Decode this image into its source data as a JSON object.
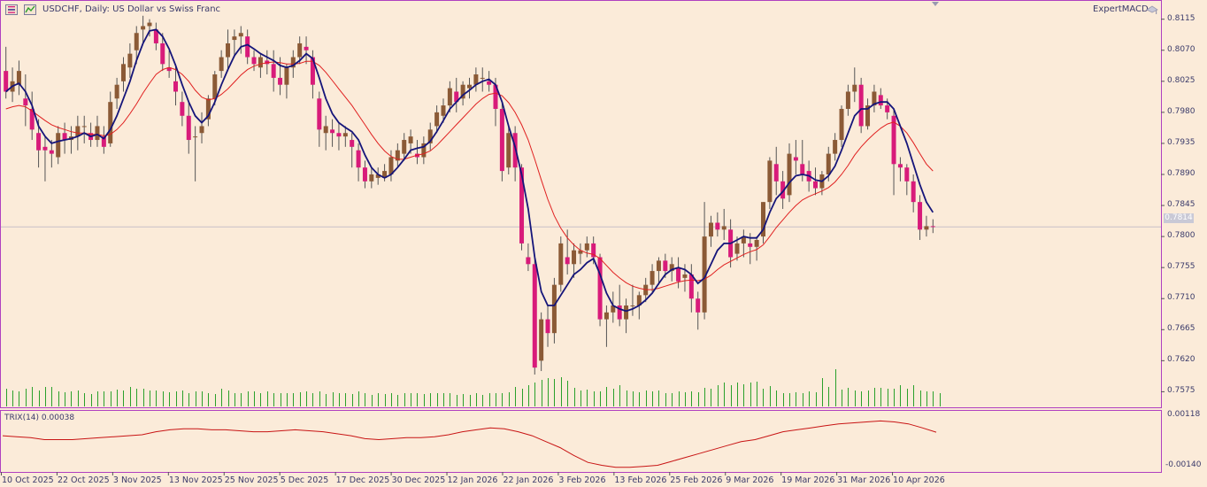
{
  "header": {
    "title": "USDCHF, Daily:  US Dollar vs Swiss Franc",
    "expert": "ExpertMACD"
  },
  "price_axis": {
    "ticks": [
      "0.8115",
      "0.8070",
      "0.8025",
      "0.7980",
      "0.7935",
      "0.7890",
      "0.7845",
      "0.7800",
      "0.7755",
      "0.7710",
      "0.7665",
      "0.7620",
      "0.7575"
    ],
    "current_price": "0.7814"
  },
  "indicator": {
    "label": "TRIX(14) 0.00038",
    "ticks": [
      "0.00118",
      "-0.00140"
    ]
  },
  "time_axis": {
    "labels": [
      "10 Oct 2025",
      "22 Oct 2025",
      "3 Nov 2025",
      "13 Nov 2025",
      "25 Nov 2025",
      "5 Dec 2025",
      "17 Dec 2025",
      "30 Dec 2025",
      "12 Jan 2026",
      "22 Jan 2026",
      "3 Feb 2026",
      "13 Feb 2026",
      "25 Feb 2026",
      "9 Mar 2026",
      "19 Mar 2026",
      "31 Mar 2026",
      "10 Apr 2026"
    ]
  },
  "colors": {
    "background": "#fbebd9",
    "bull_candle": "#8b5a36",
    "bear_candle": "#d81b7a",
    "fast_ma": "#15157a",
    "slow_ma": "#e02020",
    "volume": "#2aa02a",
    "trix": "#c81414",
    "frame": "#b040c0"
  },
  "chart_data": {
    "type": "candlestick",
    "title": "USDCHF, Daily:  US Dollar vs Swiss Franc",
    "ohlc": [
      [
        0.804,
        0.8075,
        0.8,
        0.801
      ],
      [
        0.801,
        0.8045,
        0.7995,
        0.8025
      ],
      [
        0.802,
        0.8055,
        0.8005,
        0.804
      ],
      [
        0.8,
        0.8035,
        0.796,
        0.799
      ],
      [
        0.7985,
        0.801,
        0.794,
        0.7955
      ],
      [
        0.795,
        0.797,
        0.79,
        0.7925
      ],
      [
        0.793,
        0.7945,
        0.788,
        0.7925
      ],
      [
        0.7925,
        0.794,
        0.79,
        0.792
      ],
      [
        0.7915,
        0.796,
        0.7905,
        0.795
      ],
      [
        0.795,
        0.7965,
        0.792,
        0.794
      ],
      [
        0.794,
        0.796,
        0.792,
        0.7945
      ],
      [
        0.7945,
        0.7975,
        0.7925,
        0.796
      ],
      [
        0.796,
        0.7975,
        0.7935,
        0.796
      ],
      [
        0.795,
        0.7965,
        0.793,
        0.794
      ],
      [
        0.794,
        0.7975,
        0.793,
        0.796
      ],
      [
        0.7945,
        0.796,
        0.792,
        0.793
      ],
      [
        0.7935,
        0.801,
        0.793,
        0.7995
      ],
      [
        0.8,
        0.803,
        0.7985,
        0.802
      ],
      [
        0.8025,
        0.806,
        0.801,
        0.805
      ],
      [
        0.8045,
        0.808,
        0.803,
        0.8065
      ],
      [
        0.807,
        0.8105,
        0.805,
        0.8095
      ],
      [
        0.81,
        0.812,
        0.808,
        0.8105
      ],
      [
        0.8105,
        0.8115,
        0.809,
        0.811
      ],
      [
        0.81,
        0.811,
        0.807,
        0.808
      ],
      [
        0.808,
        0.8095,
        0.804,
        0.805
      ],
      [
        0.8045,
        0.807,
        0.803,
        0.804
      ],
      [
        0.8025,
        0.805,
        0.799,
        0.801
      ],
      [
        0.7995,
        0.801,
        0.796,
        0.7975
      ],
      [
        0.7975,
        0.7995,
        0.792,
        0.794
      ],
      [
        0.7945,
        0.796,
        0.788,
        0.7945
      ],
      [
        0.795,
        0.798,
        0.7935,
        0.796
      ],
      [
        0.797,
        0.8005,
        0.796,
        0.8
      ],
      [
        0.8,
        0.804,
        0.799,
        0.8035
      ],
      [
        0.804,
        0.807,
        0.803,
        0.806
      ],
      [
        0.806,
        0.81,
        0.804,
        0.808
      ],
      [
        0.8085,
        0.81,
        0.806,
        0.809
      ],
      [
        0.809,
        0.8105,
        0.8065,
        0.8095
      ],
      [
        0.809,
        0.81,
        0.805,
        0.806
      ],
      [
        0.806,
        0.807,
        0.804,
        0.805
      ],
      [
        0.8045,
        0.8065,
        0.803,
        0.806
      ],
      [
        0.8055,
        0.807,
        0.8035,
        0.805
      ],
      [
        0.805,
        0.807,
        0.801,
        0.803
      ],
      [
        0.803,
        0.806,
        0.8005,
        0.802
      ],
      [
        0.802,
        0.805,
        0.8,
        0.8045
      ],
      [
        0.8045,
        0.807,
        0.803,
        0.806
      ],
      [
        0.806,
        0.809,
        0.805,
        0.808
      ],
      [
        0.8075,
        0.809,
        0.805,
        0.807
      ],
      [
        0.806,
        0.807,
        0.8,
        0.802
      ],
      [
        0.8,
        0.801,
        0.793,
        0.7955
      ],
      [
        0.795,
        0.7975,
        0.7925,
        0.796
      ],
      [
        0.7955,
        0.797,
        0.793,
        0.795
      ],
      [
        0.795,
        0.7965,
        0.7925,
        0.7945
      ],
      [
        0.7945,
        0.796,
        0.793,
        0.795
      ],
      [
        0.794,
        0.795,
        0.79,
        0.793
      ],
      [
        0.7925,
        0.7935,
        0.788,
        0.79
      ],
      [
        0.79,
        0.791,
        0.787,
        0.788
      ],
      [
        0.788,
        0.79,
        0.787,
        0.789
      ],
      [
        0.7885,
        0.79,
        0.7875,
        0.789
      ],
      [
        0.7885,
        0.7905,
        0.788,
        0.7895
      ],
      [
        0.789,
        0.7925,
        0.788,
        0.7915
      ],
      [
        0.791,
        0.7935,
        0.79,
        0.7925
      ],
      [
        0.792,
        0.795,
        0.791,
        0.794
      ],
      [
        0.7935,
        0.7955,
        0.792,
        0.7945
      ],
      [
        0.792,
        0.794,
        0.7905,
        0.7915
      ],
      [
        0.7915,
        0.7945,
        0.7905,
        0.7935
      ],
      [
        0.7935,
        0.7965,
        0.7925,
        0.7955
      ],
      [
        0.796,
        0.799,
        0.795,
        0.798
      ],
      [
        0.7975,
        0.8,
        0.7965,
        0.799
      ],
      [
        0.799,
        0.8025,
        0.798,
        0.8015
      ],
      [
        0.801,
        0.803,
        0.798,
        0.7995
      ],
      [
        0.8,
        0.8025,
        0.799,
        0.802
      ],
      [
        0.8015,
        0.803,
        0.8,
        0.802
      ],
      [
        0.802,
        0.8045,
        0.801,
        0.8035
      ],
      [
        0.803,
        0.8045,
        0.801,
        0.803
      ],
      [
        0.8025,
        0.804,
        0.801,
        0.802
      ],
      [
        0.802,
        0.803,
        0.796,
        0.7985
      ],
      [
        0.7985,
        0.7995,
        0.788,
        0.7895
      ],
      [
        0.79,
        0.796,
        0.789,
        0.795
      ],
      [
        0.795,
        0.796,
        0.788,
        0.79
      ],
      [
        0.79,
        0.7905,
        0.778,
        0.779
      ],
      [
        0.777,
        0.779,
        0.775,
        0.776
      ],
      [
        0.776,
        0.777,
        0.76,
        0.761
      ],
      [
        0.762,
        0.769,
        0.7605,
        0.768
      ],
      [
        0.768,
        0.77,
        0.764,
        0.766
      ],
      [
        0.766,
        0.774,
        0.7645,
        0.773
      ],
      [
        0.773,
        0.78,
        0.772,
        0.779
      ],
      [
        0.777,
        0.781,
        0.7745,
        0.776
      ],
      [
        0.776,
        0.779,
        0.774,
        0.778
      ],
      [
        0.7775,
        0.779,
        0.776,
        0.778
      ],
      [
        0.778,
        0.78,
        0.777,
        0.779
      ],
      [
        0.779,
        0.78,
        0.776,
        0.777
      ],
      [
        0.777,
        0.7775,
        0.767,
        0.768
      ],
      [
        0.768,
        0.77,
        0.764,
        0.769
      ],
      [
        0.769,
        0.772,
        0.7675,
        0.77
      ],
      [
        0.77,
        0.773,
        0.767,
        0.768
      ],
      [
        0.768,
        0.771,
        0.766,
        0.77
      ],
      [
        0.77,
        0.773,
        0.7685,
        0.77
      ],
      [
        0.77,
        0.772,
        0.768,
        0.7715
      ],
      [
        0.7715,
        0.774,
        0.7705,
        0.773
      ],
      [
        0.773,
        0.776,
        0.772,
        0.775
      ],
      [
        0.775,
        0.777,
        0.773,
        0.7765
      ],
      [
        0.7765,
        0.7775,
        0.774,
        0.775
      ],
      [
        0.775,
        0.777,
        0.7735,
        0.776
      ],
      [
        0.7755,
        0.777,
        0.7725,
        0.7735
      ],
      [
        0.774,
        0.776,
        0.772,
        0.7745
      ],
      [
        0.7745,
        0.776,
        0.769,
        0.771
      ],
      [
        0.771,
        0.772,
        0.7665,
        0.769
      ],
      [
        0.769,
        0.785,
        0.768,
        0.78
      ],
      [
        0.78,
        0.783,
        0.7785,
        0.782
      ],
      [
        0.782,
        0.7835,
        0.78,
        0.781
      ],
      [
        0.781,
        0.784,
        0.7795,
        0.7815
      ],
      [
        0.781,
        0.7825,
        0.7755,
        0.777
      ],
      [
        0.7775,
        0.78,
        0.7765,
        0.779
      ],
      [
        0.779,
        0.781,
        0.777,
        0.78
      ],
      [
        0.779,
        0.7805,
        0.776,
        0.7785
      ],
      [
        0.7785,
        0.78,
        0.7765,
        0.7795
      ],
      [
        0.78,
        0.785,
        0.779,
        0.785
      ],
      [
        0.785,
        0.7915,
        0.784,
        0.791
      ],
      [
        0.7905,
        0.793,
        0.786,
        0.788
      ],
      [
        0.788,
        0.7895,
        0.784,
        0.7855
      ],
      [
        0.786,
        0.7935,
        0.785,
        0.792
      ],
      [
        0.7915,
        0.794,
        0.789,
        0.791
      ],
      [
        0.7905,
        0.794,
        0.788,
        0.789
      ],
      [
        0.7895,
        0.791,
        0.7865,
        0.788
      ],
      [
        0.788,
        0.79,
        0.786,
        0.787
      ],
      [
        0.787,
        0.7895,
        0.786,
        0.789
      ],
      [
        0.789,
        0.793,
        0.788,
        0.792
      ],
      [
        0.792,
        0.795,
        0.791,
        0.794
      ],
      [
        0.794,
        0.799,
        0.793,
        0.7985
      ],
      [
        0.7985,
        0.802,
        0.7975,
        0.801
      ],
      [
        0.801,
        0.8045,
        0.7995,
        0.802
      ],
      [
        0.802,
        0.803,
        0.795,
        0.796
      ],
      [
        0.796,
        0.8,
        0.7955,
        0.799
      ],
      [
        0.799,
        0.802,
        0.798,
        0.801
      ],
      [
        0.8005,
        0.8015,
        0.7985,
        0.799
      ],
      [
        0.799,
        0.8,
        0.797,
        0.798
      ],
      [
        0.7975,
        0.7985,
        0.786,
        0.7905
      ],
      [
        0.7905,
        0.7915,
        0.788,
        0.79
      ],
      [
        0.79,
        0.7905,
        0.786,
        0.788
      ],
      [
        0.788,
        0.789,
        0.7835,
        0.785
      ],
      [
        0.785,
        0.786,
        0.7795,
        0.781
      ],
      [
        0.781,
        0.783,
        0.78,
        0.7815
      ],
      [
        0.7815,
        0.7825,
        0.7805,
        0.7814
      ]
    ],
    "fast_ma": [
      0.801,
      0.8018,
      0.8022,
      0.801,
      0.799,
      0.796,
      0.7945,
      0.7935,
      0.7938,
      0.794,
      0.7942,
      0.7945,
      0.795,
      0.7945,
      0.7948,
      0.7942,
      0.7955,
      0.7975,
      0.8,
      0.8025,
      0.8055,
      0.808,
      0.8098,
      0.81,
      0.809,
      0.8072,
      0.8048,
      0.802,
      0.7995,
      0.7975,
      0.7965,
      0.7975,
      0.7995,
      0.802,
      0.8042,
      0.8062,
      0.8075,
      0.8078,
      0.8072,
      0.8065,
      0.806,
      0.8055,
      0.8048,
      0.8045,
      0.8048,
      0.8055,
      0.8065,
      0.8058,
      0.803,
      0.8,
      0.7978,
      0.7965,
      0.7958,
      0.7952,
      0.794,
      0.7918,
      0.79,
      0.789,
      0.7885,
      0.789,
      0.79,
      0.7912,
      0.7925,
      0.7928,
      0.793,
      0.7938,
      0.7952,
      0.7968,
      0.7985,
      0.7995,
      0.8005,
      0.8012,
      0.802,
      0.8025,
      0.8028,
      0.802,
      0.7995,
      0.796,
      0.793,
      0.789,
      0.784,
      0.777,
      0.772,
      0.77,
      0.77,
      0.7715,
      0.773,
      0.7745,
      0.7752,
      0.7762,
      0.7768,
      0.7745,
      0.7718,
      0.77,
      0.7695,
      0.7692,
      0.7695,
      0.77,
      0.7708,
      0.7718,
      0.7732,
      0.7745,
      0.7752,
      0.7755,
      0.7752,
      0.7745,
      0.7732,
      0.774,
      0.776,
      0.778,
      0.779,
      0.779,
      0.7795,
      0.78,
      0.7798,
      0.7798,
      0.781,
      0.7835,
      0.7855,
      0.7865,
      0.7878,
      0.7888,
      0.789,
      0.7888,
      0.7882,
      0.788,
      0.7888,
      0.7902,
      0.7925,
      0.795,
      0.7975,
      0.7985,
      0.7985,
      0.7992,
      0.7995,
      0.7995,
      0.7985,
      0.796,
      0.7935,
      0.7905,
      0.7875,
      0.785,
      0.7835
    ],
    "slow_ma": [
      0.7985,
      0.7988,
      0.799,
      0.7988,
      0.7982,
      0.7975,
      0.7968,
      0.7962,
      0.7958,
      0.7955,
      0.7952,
      0.795,
      0.795,
      0.7948,
      0.7948,
      0.7946,
      0.7948,
      0.7955,
      0.7965,
      0.7978,
      0.7992,
      0.8008,
      0.8022,
      0.8035,
      0.8042,
      0.8045,
      0.8042,
      0.8035,
      0.8025,
      0.8012,
      0.8002,
      0.7998,
      0.8,
      0.8006,
      0.8014,
      0.8024,
      0.8034,
      0.8042,
      0.8047,
      0.805,
      0.8052,
      0.8053,
      0.8052,
      0.805,
      0.805,
      0.8051,
      0.8054,
      0.8054,
      0.8048,
      0.8038,
      0.8026,
      0.8014,
      0.8002,
      0.799,
      0.7976,
      0.7962,
      0.7948,
      0.7935,
      0.7924,
      0.7916,
      0.7912,
      0.7912,
      0.7915,
      0.7918,
      0.792,
      0.7924,
      0.7932,
      0.7942,
      0.7952,
      0.7962,
      0.7972,
      0.7982,
      0.7992,
      0.8,
      0.8006,
      0.8008,
      0.8004,
      0.7994,
      0.798,
      0.7962,
      0.794,
      0.7912,
      0.7882,
      0.7854,
      0.783,
      0.7812,
      0.7798,
      0.7788,
      0.778,
      0.7776,
      0.7774,
      0.7768,
      0.7758,
      0.7748,
      0.774,
      0.7733,
      0.7728,
      0.7725,
      0.7723,
      0.7723,
      0.7725,
      0.7728,
      0.7731,
      0.7734,
      0.7736,
      0.7737,
      0.7736,
      0.7738,
      0.7744,
      0.7752,
      0.7759,
      0.7764,
      0.7769,
      0.7774,
      0.7778,
      0.7781,
      0.7788,
      0.78,
      0.7813,
      0.7824,
      0.7835,
      0.7845,
      0.7853,
      0.7858,
      0.7862,
      0.7866,
      0.7871,
      0.7879,
      0.789,
      0.7903,
      0.7918,
      0.793,
      0.794,
      0.7949,
      0.7957,
      0.7963,
      0.7966,
      0.796,
      0.795,
      0.7936,
      0.792,
      0.7905,
      0.7895
    ],
    "volume": [
      20,
      18,
      17,
      20,
      22,
      18,
      22,
      22,
      17,
      16,
      17,
      18,
      15,
      14,
      17,
      17,
      17,
      19,
      18,
      22,
      20,
      20,
      18,
      18,
      17,
      16,
      17,
      18,
      15,
      17,
      17,
      15,
      14,
      20,
      18,
      15,
      15,
      17,
      17,
      15,
      17,
      15,
      15,
      15,
      15,
      16,
      17,
      15,
      17,
      14,
      16,
      15,
      15,
      14,
      17,
      15,
      13,
      15,
      14,
      15,
      13,
      15,
      15,
      15,
      14,
      15,
      15,
      15,
      15,
      13,
      14,
      13,
      15,
      13,
      15,
      15,
      15,
      16,
      22,
      20,
      24,
      27,
      30,
      32,
      31,
      33,
      29,
      21,
      18,
      19,
      17,
      17,
      22,
      20,
      24,
      18,
      17,
      16,
      18,
      17,
      18,
      15,
      15,
      17,
      16,
      17,
      16,
      21,
      20,
      24,
      27,
      24,
      27,
      25,
      27,
      28,
      20,
      23,
      18,
      15,
      15,
      16,
      15,
      17,
      16,
      32,
      22,
      42,
      19,
      21,
      18,
      17,
      18,
      21,
      21,
      20,
      20,
      24,
      20,
      24,
      18,
      17,
      17,
      15
    ],
    "trix_values": [
      0.0002,
      0.00015,
      0.0001,
      0.0,
      0.0,
      0.0,
      5e-05,
      0.0001,
      0.00015,
      0.0002,
      0.00025,
      0.0004,
      0.0005,
      0.00055,
      0.00055,
      0.0005,
      0.0005,
      0.00045,
      0.0004,
      0.0004,
      0.00045,
      0.0005,
      0.00045,
      0.0004,
      0.0003,
      0.0002,
      5e-05,
      0.0,
      5e-05,
      0.0001,
      0.0001,
      0.00015,
      0.00025,
      0.0004,
      0.0005,
      0.0006,
      0.00055,
      0.0004,
      0.0002,
      -0.0001,
      -0.0004,
      -0.0008,
      -0.00115,
      -0.0013,
      -0.0014,
      -0.0014,
      -0.00135,
      -0.0013,
      -0.0011,
      -0.0009,
      -0.0007,
      -0.0005,
      -0.0003,
      -0.0001,
      0.0,
      0.0002,
      0.0004,
      0.0005,
      0.0006,
      0.0007,
      0.0008,
      0.00085,
      0.0009,
      0.00095,
      0.0009,
      0.0008,
      0.0006,
      0.00038
    ],
    "price_ylim": [
      0.7555,
      0.813
    ],
    "trix_ylim": [
      -0.0015,
      0.00128
    ],
    "x_labels": [
      "10 Oct 2025",
      "22 Oct 2025",
      "3 Nov 2025",
      "13 Nov 2025",
      "25 Nov 2025",
      "5 Dec 2025",
      "17 Dec 2025",
      "30 Dec 2025",
      "12 Jan 2026",
      "22 Jan 2026",
      "3 Feb 2026",
      "13 Feb 2026",
      "25 Feb 2026",
      "9 Mar 2026",
      "19 Mar 2026",
      "31 Mar 2026",
      "10 Apr 2026"
    ],
    "grid": false
  }
}
